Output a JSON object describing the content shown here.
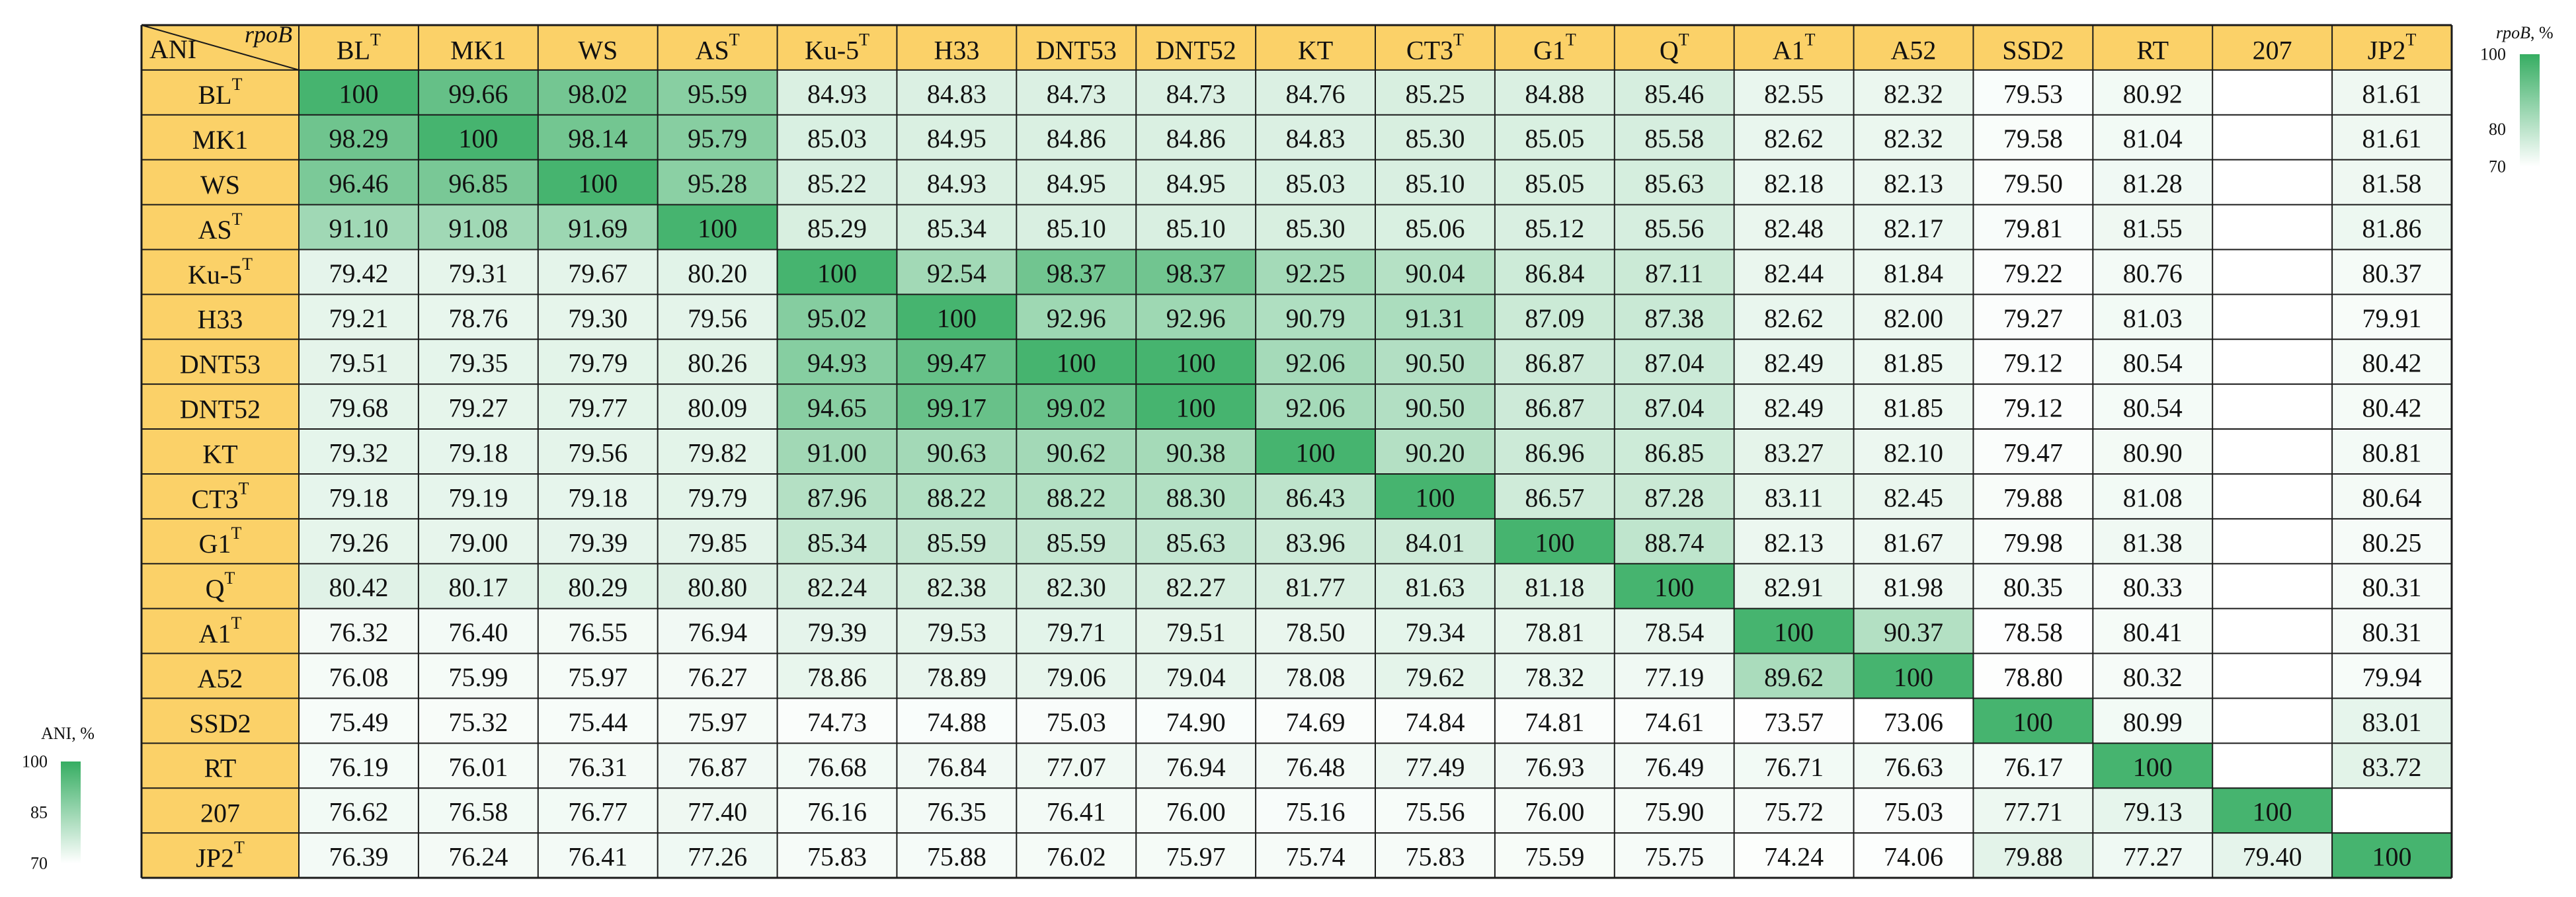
{
  "chart_data": {
    "type": "heatmap",
    "corner_row_label": "ANI",
    "corner_col_label": "rpoB",
    "rows": [
      {
        "name": "BL",
        "sup": "T"
      },
      {
        "name": "MK1",
        "sup": ""
      },
      {
        "name": "WS",
        "sup": ""
      },
      {
        "name": "AS",
        "sup": "T"
      },
      {
        "name": "Ku-5",
        "sup": "T"
      },
      {
        "name": "H33",
        "sup": ""
      },
      {
        "name": "DNT53",
        "sup": ""
      },
      {
        "name": "DNT52",
        "sup": ""
      },
      {
        "name": "KT",
        "sup": ""
      },
      {
        "name": "CT3",
        "sup": "T"
      },
      {
        "name": "G1",
        "sup": "T"
      },
      {
        "name": "Q",
        "sup": "T"
      },
      {
        "name": "A1",
        "sup": "T"
      },
      {
        "name": "A52",
        "sup": ""
      },
      {
        "name": "SSD2",
        "sup": ""
      },
      {
        "name": "RT",
        "sup": ""
      },
      {
        "name": "207",
        "sup": ""
      },
      {
        "name": "JP2",
        "sup": "T"
      }
    ],
    "columns": [
      {
        "name": "BL",
        "sup": "T"
      },
      {
        "name": "MK1",
        "sup": ""
      },
      {
        "name": "WS",
        "sup": ""
      },
      {
        "name": "AS",
        "sup": "T"
      },
      {
        "name": "Ku-5",
        "sup": "T"
      },
      {
        "name": "H33",
        "sup": ""
      },
      {
        "name": "DNT53",
        "sup": ""
      },
      {
        "name": "DNT52",
        "sup": ""
      },
      {
        "name": "KT",
        "sup": ""
      },
      {
        "name": "CT3",
        "sup": "T"
      },
      {
        "name": "G1",
        "sup": "T"
      },
      {
        "name": "Q",
        "sup": "T"
      },
      {
        "name": "A1",
        "sup": "T"
      },
      {
        "name": "A52",
        "sup": ""
      },
      {
        "name": "SSD2",
        "sup": ""
      },
      {
        "name": "RT",
        "sup": ""
      },
      {
        "name": "207",
        "sup": ""
      },
      {
        "name": "JP2",
        "sup": "T"
      }
    ],
    "cells": [
      [
        "100",
        "99.66",
        "98.02",
        "95.59",
        "84.93",
        "84.83",
        "84.73",
        "84.73",
        "84.76",
        "85.25",
        "84.88",
        "85.46",
        "82.55",
        "82.32",
        "79.53",
        "80.92",
        "",
        "81.61"
      ],
      [
        "98.29",
        "100",
        "98.14",
        "95.79",
        "85.03",
        "84.95",
        "84.86",
        "84.86",
        "84.83",
        "85.30",
        "85.05",
        "85.58",
        "82.62",
        "82.32",
        "79.58",
        "81.04",
        "",
        "81.61"
      ],
      [
        "96.46",
        "96.85",
        "100",
        "95.28",
        "85.22",
        "84.93",
        "84.95",
        "84.95",
        "85.03",
        "85.10",
        "85.05",
        "85.63",
        "82.18",
        "82.13",
        "79.50",
        "81.28",
        "",
        "81.58"
      ],
      [
        "91.10",
        "91.08",
        "91.69",
        "100",
        "85.29",
        "85.34",
        "85.10",
        "85.10",
        "85.30",
        "85.06",
        "85.12",
        "85.56",
        "82.48",
        "82.17",
        "79.81",
        "81.55",
        "",
        "81.86"
      ],
      [
        "79.42",
        "79.31",
        "79.67",
        "80.20",
        "100",
        "92.54",
        "98.37",
        "98.37",
        "92.25",
        "90.04",
        "86.84",
        "87.11",
        "82.44",
        "81.84",
        "79.22",
        "80.76",
        "",
        "80.37"
      ],
      [
        "79.21",
        "78.76",
        "79.30",
        "79.56",
        "95.02",
        "100",
        "92.96",
        "92.96",
        "90.79",
        "91.31",
        "87.09",
        "87.38",
        "82.62",
        "82.00",
        "79.27",
        "81.03",
        "",
        "79.91"
      ],
      [
        "79.51",
        "79.35",
        "79.79",
        "80.26",
        "94.93",
        "99.47",
        "100",
        "100",
        "92.06",
        "90.50",
        "86.87",
        "87.04",
        "82.49",
        "81.85",
        "79.12",
        "80.54",
        "",
        "80.42"
      ],
      [
        "79.68",
        "79.27",
        "79.77",
        "80.09",
        "94.65",
        "99.17",
        "99.02",
        "100",
        "92.06",
        "90.50",
        "86.87",
        "87.04",
        "82.49",
        "81.85",
        "79.12",
        "80.54",
        "",
        "80.42"
      ],
      [
        "79.32",
        "79.18",
        "79.56",
        "79.82",
        "91.00",
        "90.63",
        "90.62",
        "90.38",
        "100",
        "90.20",
        "86.96",
        "86.85",
        "83.27",
        "82.10",
        "79.47",
        "80.90",
        "",
        "80.81"
      ],
      [
        "79.18",
        "79.19",
        "79.18",
        "79.79",
        "87.96",
        "88.22",
        "88.22",
        "88.30",
        "86.43",
        "100",
        "86.57",
        "87.28",
        "83.11",
        "82.45",
        "79.88",
        "81.08",
        "",
        "80.64"
      ],
      [
        "79.26",
        "79.00",
        "79.39",
        "79.85",
        "85.34",
        "85.59",
        "85.59",
        "85.63",
        "83.96",
        "84.01",
        "100",
        "88.74",
        "82.13",
        "81.67",
        "79.98",
        "81.38",
        "",
        "80.25"
      ],
      [
        "80.42",
        "80.17",
        "80.29",
        "80.80",
        "82.24",
        "82.38",
        "82.30",
        "82.27",
        "81.77",
        "81.63",
        "81.18",
        "100",
        "82.91",
        "81.98",
        "80.35",
        "80.33",
        "",
        "80.31"
      ],
      [
        "76.32",
        "76.40",
        "76.55",
        "76.94",
        "79.39",
        "79.53",
        "79.71",
        "79.51",
        "78.50",
        "79.34",
        "78.81",
        "78.54",
        "100",
        "90.37",
        "78.58",
        "80.41",
        "",
        "80.31"
      ],
      [
        "76.08",
        "75.99",
        "75.97",
        "76.27",
        "78.86",
        "78.89",
        "79.06",
        "79.04",
        "78.08",
        "79.62",
        "78.32",
        "77.19",
        "89.62",
        "100",
        "78.80",
        "80.32",
        "",
        "79.94"
      ],
      [
        "75.49",
        "75.32",
        "75.44",
        "75.97",
        "74.73",
        "74.88",
        "75.03",
        "74.90",
        "74.69",
        "74.84",
        "74.81",
        "74.61",
        "73.57",
        "73.06",
        "100",
        "80.99",
        "",
        "83.01"
      ],
      [
        "76.19",
        "76.01",
        "76.31",
        "76.87",
        "76.68",
        "76.84",
        "77.07",
        "76.94",
        "76.48",
        "77.49",
        "76.93",
        "76.49",
        "76.71",
        "76.63",
        "76.17",
        "100",
        "",
        "83.72"
      ],
      [
        "76.62",
        "76.58",
        "76.77",
        "77.40",
        "76.16",
        "76.35",
        "76.41",
        "76.00",
        "75.16",
        "75.56",
        "76.00",
        "75.90",
        "75.72",
        "75.03",
        "77.71",
        "79.13",
        "100",
        ""
      ],
      [
        "76.39",
        "76.24",
        "76.41",
        "77.26",
        "75.83",
        "75.88",
        "76.02",
        "75.97",
        "75.74",
        "75.83",
        "75.59",
        "75.75",
        "74.24",
        "74.06",
        "79.88",
        "77.27",
        "79.40",
        "100"
      ]
    ],
    "lower_triangle_metric": "ANI",
    "upper_triangle_metric": "rpoB",
    "color_scales": {
      "ani": {
        "title": "ANI, %",
        "min": 70,
        "mid": 85,
        "max": 100,
        "ticks": [
          "100",
          "85",
          "70"
        ],
        "placement": "bottom-left"
      },
      "rpob": {
        "title": "rpoB, %",
        "min": 70,
        "mid": 80,
        "max": 100,
        "ticks": [
          "100",
          "80",
          "70"
        ],
        "placement": "top-right"
      }
    },
    "colors": {
      "header_fill": "#fbd168",
      "grid_line": "#1a1a1a",
      "scale_low": "#ffffff",
      "scale_high": "#36ad62",
      "text": "#111111"
    }
  }
}
